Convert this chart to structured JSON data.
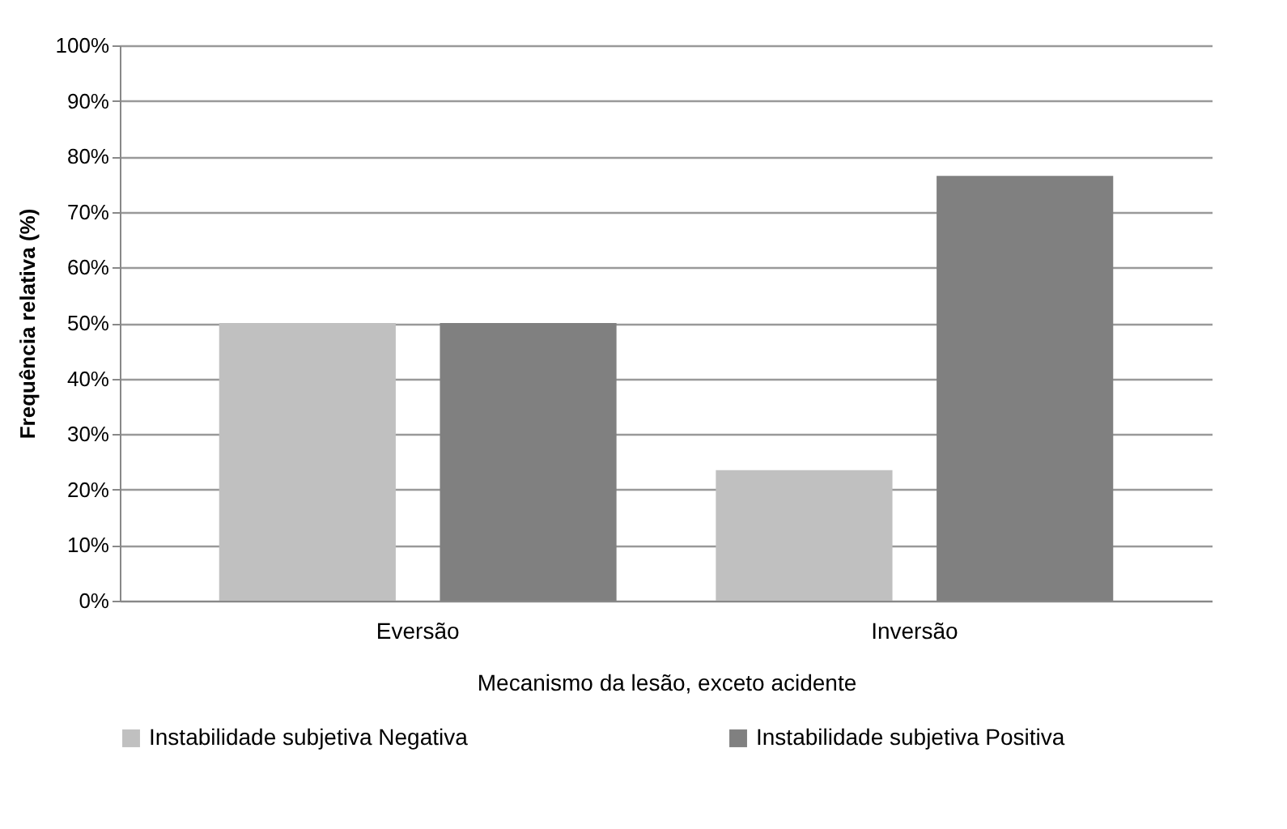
{
  "chart_data": {
    "type": "bar",
    "xlabel": "Mecanismo da lesão, exceto acidente",
    "ylabel": "Frequência relativa (%)",
    "categories": [
      "Eversão",
      "Inversão"
    ],
    "series": [
      {
        "name": "Instabilidade subjetiva Negativa",
        "color": "#c0c0c0",
        "values": [
          50,
          23.5
        ]
      },
      {
        "name": "Instabilidade subjetiva Positiva",
        "color": "#808080",
        "values": [
          50,
          76.5
        ]
      }
    ],
    "ylim": [
      0,
      100
    ],
    "yticks": [
      {
        "value": 0,
        "label": "0%"
      },
      {
        "value": 10,
        "label": "10%"
      },
      {
        "value": 20,
        "label": "20%"
      },
      {
        "value": 30,
        "label": "30%"
      },
      {
        "value": 40,
        "label": "40%"
      },
      {
        "value": 50,
        "label": "50%"
      },
      {
        "value": 60,
        "label": "60%"
      },
      {
        "value": 70,
        "label": "70%"
      },
      {
        "value": 80,
        "label": "80%"
      },
      {
        "value": 90,
        "label": "90%"
      },
      {
        "value": 100,
        "label": "100%"
      }
    ],
    "grid": "y",
    "legend": "bottom"
  }
}
